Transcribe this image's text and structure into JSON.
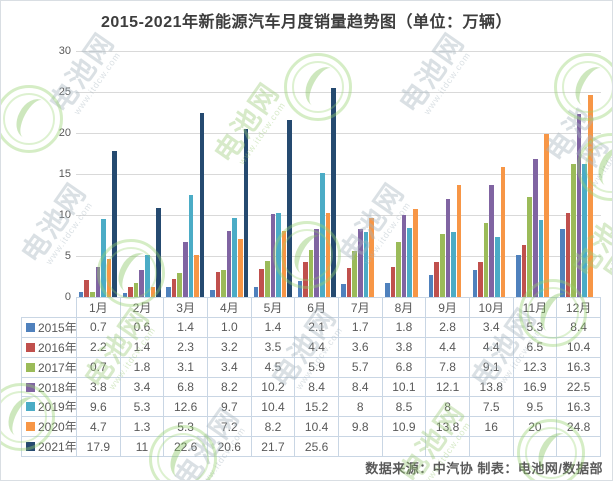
{
  "title": "2015-2021年新能源汽车月度销量趋势图（单位：万辆）",
  "footer": {
    "text": "数据来源：中汽协  制表：电池网/数据部"
  },
  "watermark": {
    "brand": "电池网",
    "url": "www.itdcw.com"
  },
  "chart_data": {
    "type": "bar",
    "title": "2015-2021年新能源汽车月度销量趋势图",
    "unit_label": "万辆",
    "categories": [
      "1月",
      "2月",
      "3月",
      "4月",
      "5月",
      "6月",
      "7月",
      "8月",
      "9月",
      "10月",
      "11月",
      "12月"
    ],
    "series": [
      {
        "name": "2015年",
        "color": "#4F81BD",
        "values": [
          "0.7",
          "0.6",
          "1.4",
          "1.0",
          "1.4",
          "2.1",
          "1.7",
          "1.8",
          "2.8",
          "3.4",
          "5.3",
          "8.4"
        ]
      },
      {
        "name": "2016年",
        "color": "#C0504D",
        "values": [
          "2.2",
          "1.4",
          "2.3",
          "3.2",
          "3.5",
          "4.4",
          "3.6",
          "3.8",
          "4.4",
          "4.4",
          "6.5",
          "10.4"
        ]
      },
      {
        "name": "2017年",
        "color": "#9BBB59",
        "values": [
          "0.7",
          "1.8",
          "3.1",
          "3.4",
          "4.5",
          "5.9",
          "5.7",
          "6.8",
          "7.8",
          "9.1",
          "12.3",
          "16.3"
        ]
      },
      {
        "name": "2018年",
        "color": "#8064A2",
        "values": [
          "3.8",
          "3.4",
          "6.8",
          "8.2",
          "10.2",
          "8.4",
          "8.4",
          "10.1",
          "12.1",
          "13.8",
          "16.9",
          "22.5"
        ]
      },
      {
        "name": "2019年",
        "color": "#4BACC6",
        "values": [
          "9.6",
          "5.3",
          "12.6",
          "9.7",
          "10.4",
          "15.2",
          "8",
          "8.5",
          "8",
          "7.5",
          "9.5",
          "16.3"
        ]
      },
      {
        "name": "2020年",
        "color": "#F79646",
        "values": [
          "4.7",
          "1.3",
          "5.3",
          "7.2",
          "8.2",
          "10.4",
          "9.8",
          "10.9",
          "13.8",
          "16",
          "20",
          "24.8"
        ]
      },
      {
        "name": "2021年",
        "color": "#254A70",
        "values": [
          "17.9",
          "11",
          "22.6",
          "20.6",
          "21.7",
          "25.6",
          "",
          "",
          "",
          "",
          "",
          ""
        ]
      }
    ],
    "y_axis_ticks": [
      0,
      5,
      10,
      15,
      20,
      25,
      30
    ],
    "ylim": [
      0,
      30
    ],
    "grid": true,
    "legend_position": "table-left-column"
  }
}
